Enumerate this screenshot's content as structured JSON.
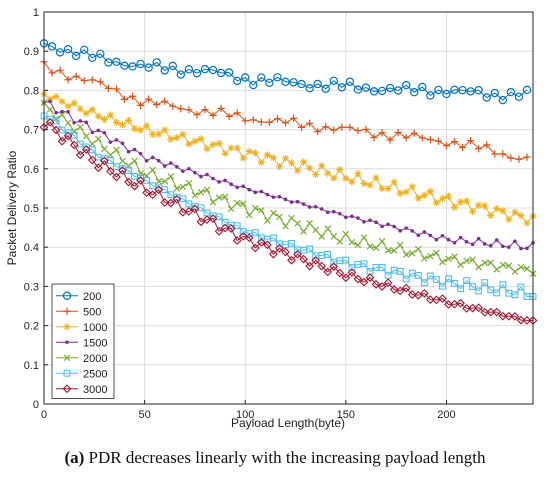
{
  "caption": {
    "label": "(a)",
    "text": " PDR decreases linearly with the increasing payload length"
  },
  "chart_data": {
    "type": "line",
    "xlabel": "Payload Length(byte)",
    "ylabel": "Packet Delivery Ratio",
    "xlim": [
      0,
      243
    ],
    "ylim": [
      0,
      1
    ],
    "xticks": [
      0,
      50,
      100,
      150,
      200
    ],
    "yticks": [
      0,
      0.1,
      0.2,
      0.3,
      0.4,
      0.5,
      0.6,
      0.7,
      0.8,
      0.9,
      1
    ],
    "grid": true,
    "legend_position": "bottom-left",
    "series": [
      {
        "name": "200",
        "color": "#0072BD",
        "marker": "circle",
        "step": 4,
        "anchors": [
          [
            0,
            0.92
          ],
          [
            20,
            0.89
          ],
          [
            50,
            0.86
          ],
          [
            80,
            0.85
          ],
          [
            100,
            0.83
          ],
          [
            120,
            0.82
          ],
          [
            150,
            0.81
          ],
          [
            180,
            0.8
          ],
          [
            200,
            0.8
          ],
          [
            220,
            0.79
          ],
          [
            243,
            0.79
          ]
        ]
      },
      {
        "name": "500",
        "color": "#D95319",
        "marker": "plus",
        "step": 4,
        "anchors": [
          [
            0,
            0.86
          ],
          [
            25,
            0.82
          ],
          [
            50,
            0.77
          ],
          [
            100,
            0.73
          ],
          [
            150,
            0.7
          ],
          [
            200,
            0.67
          ],
          [
            220,
            0.65
          ],
          [
            243,
            0.62
          ]
        ]
      },
      {
        "name": "1000",
        "color": "#EDB120",
        "marker": "star",
        "step": 3,
        "anchors": [
          [
            0,
            0.79
          ],
          [
            25,
            0.74
          ],
          [
            50,
            0.7
          ],
          [
            100,
            0.64
          ],
          [
            150,
            0.58
          ],
          [
            200,
            0.52
          ],
          [
            243,
            0.47
          ]
        ]
      },
      {
        "name": "1500",
        "color": "#7E2F8E",
        "marker": "dot",
        "step": 3,
        "anchors": [
          [
            0,
            0.77
          ],
          [
            25,
            0.7
          ],
          [
            50,
            0.63
          ],
          [
            100,
            0.55
          ],
          [
            150,
            0.48
          ],
          [
            200,
            0.42
          ],
          [
            243,
            0.4
          ]
        ]
      },
      {
        "name": "2000",
        "color": "#77AC30",
        "marker": "x",
        "step": 3,
        "anchors": [
          [
            0,
            0.76
          ],
          [
            25,
            0.67
          ],
          [
            50,
            0.59
          ],
          [
            100,
            0.5
          ],
          [
            150,
            0.42
          ],
          [
            200,
            0.37
          ],
          [
            243,
            0.34
          ]
        ]
      },
      {
        "name": "2500",
        "color": "#4DBEEE",
        "marker": "square",
        "step": 3,
        "anchors": [
          [
            0,
            0.74
          ],
          [
            25,
            0.64
          ],
          [
            50,
            0.57
          ],
          [
            100,
            0.44
          ],
          [
            150,
            0.36
          ],
          [
            200,
            0.31
          ],
          [
            243,
            0.28
          ]
        ]
      },
      {
        "name": "3000",
        "color": "#A2142F",
        "marker": "diamond",
        "step": 3,
        "anchors": [
          [
            0,
            0.72
          ],
          [
            25,
            0.62
          ],
          [
            50,
            0.55
          ],
          [
            100,
            0.42
          ],
          [
            150,
            0.33
          ],
          [
            200,
            0.26
          ],
          [
            243,
            0.21
          ]
        ]
      }
    ]
  }
}
